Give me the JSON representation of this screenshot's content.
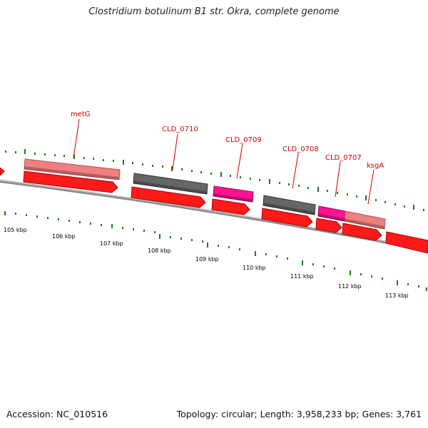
{
  "title": "Clostridium botulinum B1 str. Okra, complete genome",
  "accession_label": "Accession: NC_010516",
  "topology_label": "Topology: circular; Length: 3,958,233 bp; Genes: 3,761",
  "colors": {
    "backbone": "#8a8a8a",
    "tick": "#1a7a1a",
    "gene_label": "#cc0000",
    "cds_red": "#ff1a1a",
    "pink": "#f08080",
    "gray": "#666666",
    "magenta": "#ff1493"
  },
  "gene_labels": [
    "metG",
    "CLD_0710",
    "CLD_0709",
    "CLD_0708",
    "CLD_0707",
    "ksgA"
  ],
  "kbp_labels": [
    "105 kbp",
    "106 kbp",
    "107 kbp",
    "108 kbp",
    "109 kbp",
    "110 kbp",
    "111 kbp",
    "112 kbp",
    "113 kbp"
  ]
}
